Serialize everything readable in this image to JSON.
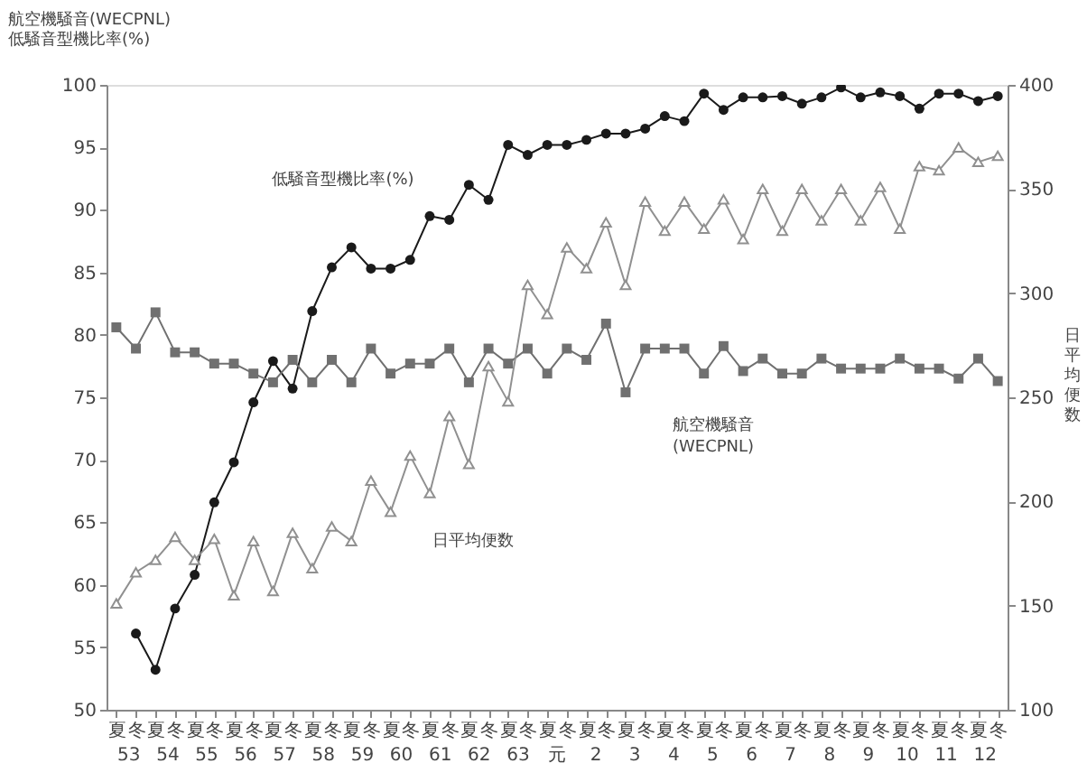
{
  "chart_data": {
    "type": "line",
    "categories": [
      "夏",
      "冬",
      "夏",
      "冬",
      "夏",
      "冬",
      "夏",
      "冬",
      "夏",
      "冬",
      "夏",
      "冬",
      "夏",
      "冬",
      "夏",
      "冬",
      "夏",
      "冬",
      "夏",
      "冬",
      "夏",
      "冬",
      "夏",
      "冬",
      "夏",
      "冬",
      "夏",
      "冬",
      "夏",
      "冬",
      "夏",
      "冬",
      "夏",
      "冬",
      "夏",
      "冬",
      "夏",
      "冬",
      "夏",
      "冬",
      "夏",
      "冬",
      "夏",
      "冬",
      "夏",
      "冬"
    ],
    "annotations": [
      "53",
      "54",
      "55",
      "56",
      "57",
      "58",
      "59",
      "60",
      "61",
      "62",
      "63",
      "元",
      "2",
      "3",
      "4",
      "5",
      "6",
      "7",
      "8",
      "9",
      "10",
      "11",
      "12"
    ],
    "ylabel": [
      "航空機騒音(WECPNL)",
      "低騒音型機比率(%)"
    ],
    "y2label": "日平均便数",
    "ylim": [
      50,
      100
    ],
    "yticks": [
      50,
      55,
      60,
      65,
      70,
      75,
      80,
      85,
      90,
      95,
      100
    ],
    "y2lim": [
      100,
      400
    ],
    "y2ticks": [
      100,
      150,
      200,
      250,
      300,
      350,
      400
    ],
    "grid": false,
    "line_style": "solid",
    "series": [
      {
        "name": "低騒音型機比率(%)",
        "color": "#1a1a1a",
        "marker": "circle",
        "values": [
          null,
          56.1,
          53.2,
          58.1,
          60.8,
          66.6,
          69.8,
          74.6,
          77.9,
          75.7,
          81.9,
          85.4,
          87.0,
          85.3,
          85.3,
          86.0,
          89.5,
          89.2,
          92.0,
          90.8,
          95.2,
          94.4,
          95.2,
          95.2,
          95.6,
          96.1,
          96.1,
          96.5,
          97.5,
          97.1,
          99.3,
          98.0,
          99.0,
          99.0,
          99.1,
          98.5,
          99.0,
          99.8,
          99.0,
          99.4,
          99.1,
          98.1,
          99.3,
          99.3,
          98.7,
          99.1
        ]
      },
      {
        "name": "航空機騒音\n(WECPNL)",
        "color": "#707070",
        "marker": "square",
        "values": [
          80.6,
          78.9,
          81.8,
          78.6,
          78.6,
          77.7,
          77.7,
          76.9,
          76.2,
          78.0,
          76.2,
          78.0,
          76.2,
          78.9,
          76.9,
          77.7,
          77.7,
          78.9,
          76.2,
          78.9,
          77.7,
          78.9,
          76.9,
          78.9,
          78.0,
          80.9,
          75.4,
          78.9,
          78.9,
          78.9,
          76.9,
          79.1,
          77.1,
          78.1,
          76.9,
          76.9,
          78.1,
          77.3,
          77.3,
          77.3,
          78.1,
          77.3,
          77.3,
          76.5,
          78.1,
          76.3
        ]
      },
      {
        "name": "日平均便数",
        "color": "#909090",
        "marker": "triangle",
        "axis": "y2",
        "values": [
          151,
          166,
          172,
          183,
          172,
          182,
          155,
          181,
          157,
          185,
          168,
          188,
          181,
          210,
          195,
          222,
          204,
          241,
          218,
          265,
          248,
          304,
          290,
          322,
          312,
          334,
          304,
          344,
          330,
          344,
          331,
          345,
          326,
          350,
          330,
          350,
          335,
          350,
          335,
          351,
          331,
          361,
          359,
          370,
          363,
          366
        ]
      }
    ]
  }
}
